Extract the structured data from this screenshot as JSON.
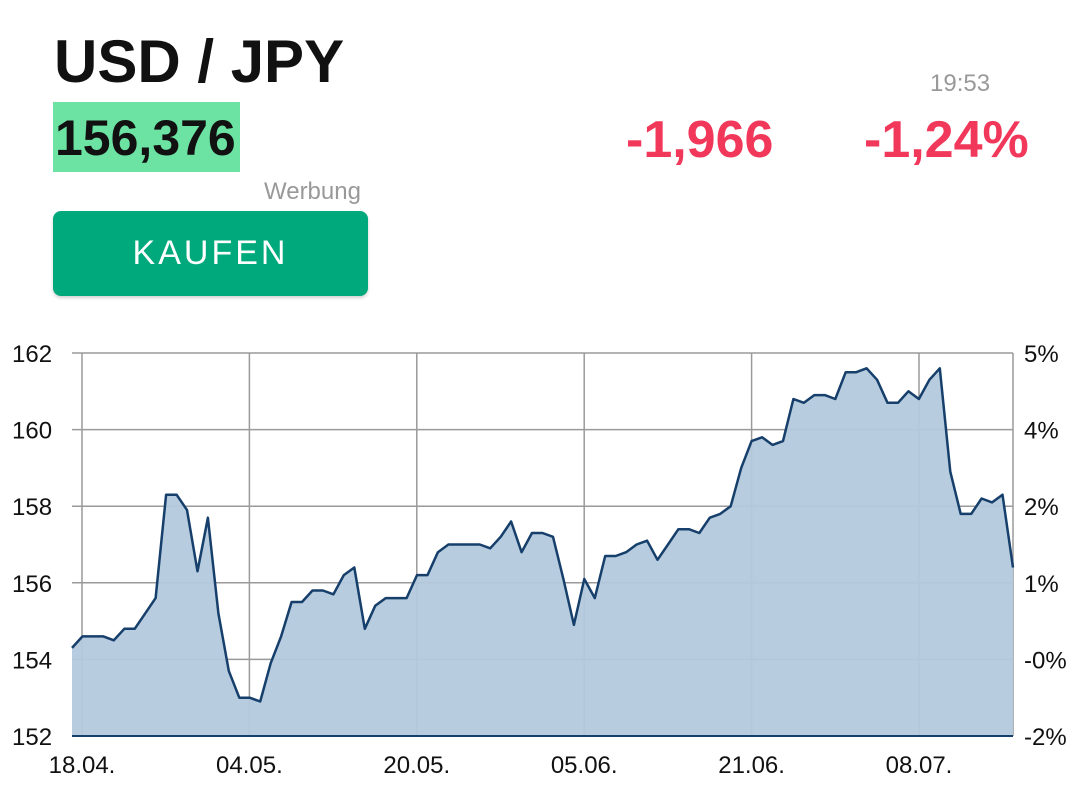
{
  "header": {
    "pair": "USD / JPY",
    "price": "156,376",
    "time": "19:53",
    "change": "-1,966",
    "change_pct": "-1,24%",
    "ad_label": "Werbung",
    "buy_label": "KAUFEN"
  },
  "colors": {
    "price_highlight": "#6ce3a3",
    "negative": "#f2385a",
    "buy_button": "#00a97b",
    "line": "#163f6b",
    "area": "#b3c9dc",
    "grid": "#9a9a9a"
  },
  "chart_data": {
    "type": "area",
    "title": "",
    "ylim": [
      152,
      162
    ],
    "y_ticks": [
      "152",
      "154",
      "156",
      "158",
      "160",
      "162"
    ],
    "y_ticks_right": [
      "-2%",
      "-0%",
      "1%",
      "2%",
      "4%",
      "5%"
    ],
    "x_ticks": [
      "18.04.",
      "04.05.",
      "20.05.",
      "05.06.",
      "21.06.",
      "08.07."
    ],
    "grid": true,
    "series": [
      {
        "values": [
          154.3,
          154.6,
          154.6,
          154.6,
          154.5,
          154.8,
          154.8,
          155.2,
          155.6,
          158.3,
          158.3,
          157.9,
          156.3,
          157.7,
          155.2,
          153.7,
          153.0,
          153.0,
          152.9,
          153.9,
          154.6,
          155.5,
          155.5,
          155.8,
          155.8,
          155.7,
          156.2,
          156.4,
          154.8,
          155.4,
          155.6,
          155.6,
          155.6,
          156.2,
          156.2,
          156.8,
          157.0,
          157.0,
          157.0,
          157.0,
          156.9,
          157.2,
          157.6,
          156.8,
          157.3,
          157.3,
          157.2,
          156.1,
          154.9,
          156.1,
          155.6,
          156.7,
          156.7,
          156.8,
          157.0,
          157.1,
          156.6,
          157.0,
          157.4,
          157.4,
          157.3,
          157.7,
          157.8,
          158.0,
          159.0,
          159.7,
          159.8,
          159.6,
          159.7,
          160.8,
          160.7,
          160.9,
          160.9,
          160.8,
          161.5,
          161.5,
          161.6,
          161.3,
          160.7,
          160.7,
          161.0,
          160.8,
          161.3,
          161.6,
          158.9,
          157.8,
          157.8,
          158.2,
          158.1,
          158.3,
          156.4
        ]
      }
    ]
  }
}
